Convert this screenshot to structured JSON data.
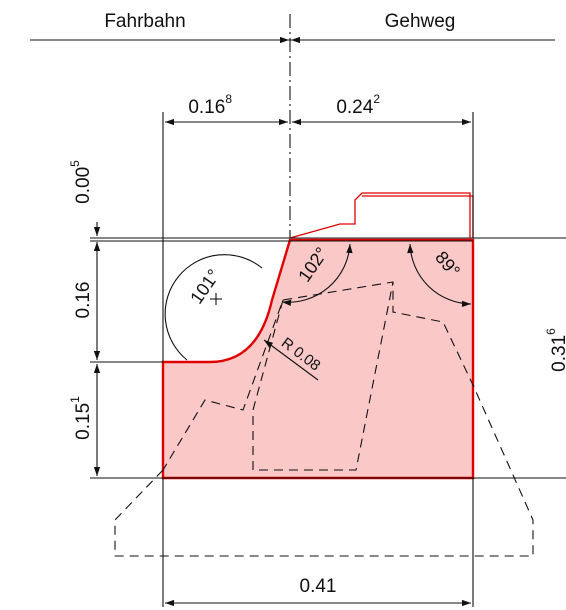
{
  "labels": {
    "left_area": "Fahrbahn",
    "right_area": "Gehweg"
  },
  "dimensions": {
    "top_left": {
      "main": "0.16",
      "sup": "8"
    },
    "top_right": {
      "main": "0.24",
      "sup": "2"
    },
    "bottom": {
      "main": "0.41"
    },
    "v_top": {
      "main": "0.00",
      "sup": "5"
    },
    "v_mid": {
      "main": "0.16"
    },
    "v_low": {
      "main": "0.15",
      "sup": "1"
    },
    "v_right": {
      "main": "0.31",
      "sup": "6"
    }
  },
  "angles": {
    "a1": "101°",
    "a2": "102°",
    "a3": "89°"
  },
  "radius": "R 0.08",
  "colors": {
    "profile_stroke": "#e00000",
    "profile_fill": "#fbc8c8",
    "line": "#111111"
  }
}
